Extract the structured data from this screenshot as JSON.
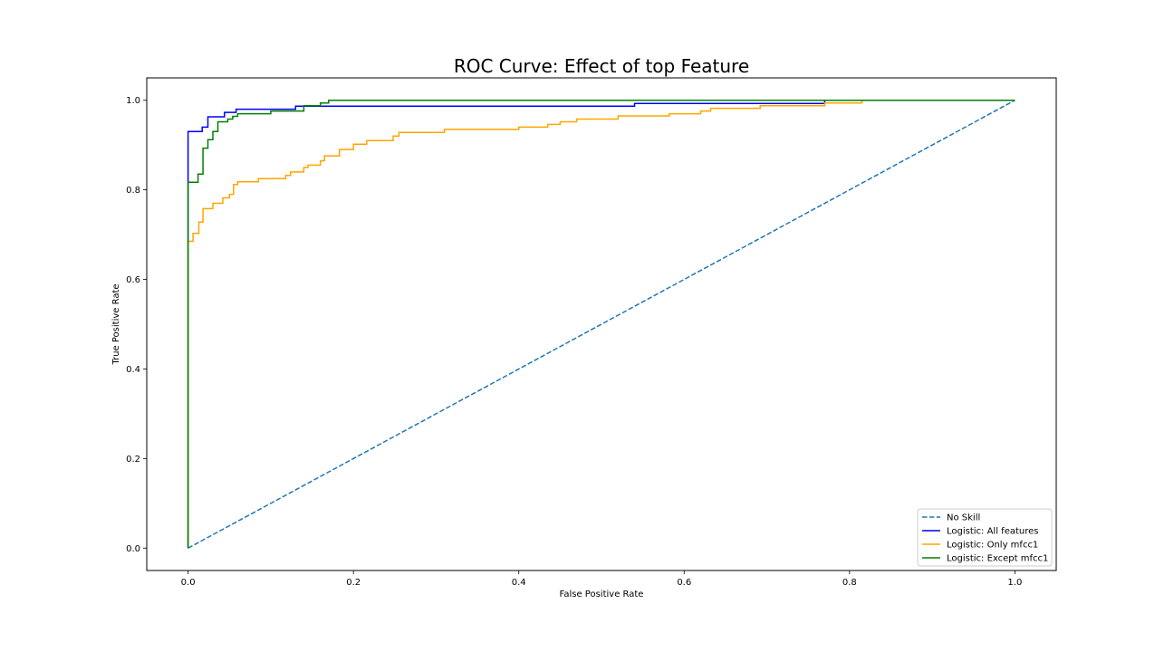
{
  "chart_data": {
    "type": "line",
    "title": "ROC Curve: Effect of top Feature",
    "xlabel": "False Positive Rate",
    "ylabel": "True Positive Rate",
    "xlim": [
      -0.05,
      1.05
    ],
    "ylim": [
      -0.05,
      1.05
    ],
    "xticks": [
      "0.0",
      "0.2",
      "0.4",
      "0.6",
      "0.8",
      "1.0"
    ],
    "yticks": [
      "0.0",
      "0.2",
      "0.4",
      "0.6",
      "0.8",
      "1.0"
    ],
    "grid": false,
    "legend_position": "lower-right",
    "series": [
      {
        "name": "No Skill",
        "color": "#1f77b4",
        "dashed": true,
        "points": [
          [
            0,
            0
          ],
          [
            1,
            1
          ]
        ]
      },
      {
        "name": "Logistic: All features",
        "color": "#0000ff",
        "dashed": false,
        "points": [
          [
            0,
            0
          ],
          [
            0,
            0.93
          ],
          [
            0.017,
            0.93
          ],
          [
            0.017,
            0.94
          ],
          [
            0.024,
            0.94
          ],
          [
            0.024,
            0.963
          ],
          [
            0.044,
            0.963
          ],
          [
            0.044,
            0.973
          ],
          [
            0.058,
            0.973
          ],
          [
            0.058,
            0.98
          ],
          [
            0.13,
            0.98
          ],
          [
            0.13,
            0.987
          ],
          [
            0.54,
            0.987
          ],
          [
            0.54,
            0.993
          ],
          [
            0.77,
            0.993
          ],
          [
            0.77,
            1.0
          ],
          [
            1,
            1
          ]
        ]
      },
      {
        "name": "Logistic: Only mfcc1",
        "color": "#ffa500",
        "dashed": false,
        "points": [
          [
            0,
            0
          ],
          [
            0,
            0.685
          ],
          [
            0.006,
            0.685
          ],
          [
            0.006,
            0.703
          ],
          [
            0.013,
            0.703
          ],
          [
            0.013,
            0.728
          ],
          [
            0.018,
            0.728
          ],
          [
            0.018,
            0.758
          ],
          [
            0.03,
            0.758
          ],
          [
            0.03,
            0.77
          ],
          [
            0.042,
            0.77
          ],
          [
            0.042,
            0.782
          ],
          [
            0.05,
            0.782
          ],
          [
            0.05,
            0.79
          ],
          [
            0.055,
            0.79
          ],
          [
            0.055,
            0.812
          ],
          [
            0.06,
            0.812
          ],
          [
            0.06,
            0.818
          ],
          [
            0.085,
            0.818
          ],
          [
            0.085,
            0.825
          ],
          [
            0.118,
            0.825
          ],
          [
            0.118,
            0.832
          ],
          [
            0.124,
            0.832
          ],
          [
            0.124,
            0.84
          ],
          [
            0.14,
            0.84
          ],
          [
            0.14,
            0.85
          ],
          [
            0.145,
            0.85
          ],
          [
            0.145,
            0.855
          ],
          [
            0.16,
            0.855
          ],
          [
            0.16,
            0.865
          ],
          [
            0.165,
            0.865
          ],
          [
            0.165,
            0.876
          ],
          [
            0.183,
            0.876
          ],
          [
            0.183,
            0.89
          ],
          [
            0.2,
            0.89
          ],
          [
            0.2,
            0.902
          ],
          [
            0.216,
            0.902
          ],
          [
            0.216,
            0.91
          ],
          [
            0.248,
            0.91
          ],
          [
            0.248,
            0.92
          ],
          [
            0.255,
            0.92
          ],
          [
            0.255,
            0.928
          ],
          [
            0.31,
            0.928
          ],
          [
            0.31,
            0.935
          ],
          [
            0.4,
            0.935
          ],
          [
            0.4,
            0.94
          ],
          [
            0.435,
            0.94
          ],
          [
            0.435,
            0.946
          ],
          [
            0.45,
            0.946
          ],
          [
            0.45,
            0.952
          ],
          [
            0.47,
            0.952
          ],
          [
            0.47,
            0.958
          ],
          [
            0.52,
            0.958
          ],
          [
            0.52,
            0.965
          ],
          [
            0.582,
            0.965
          ],
          [
            0.582,
            0.97
          ],
          [
            0.62,
            0.97
          ],
          [
            0.62,
            0.976
          ],
          [
            0.632,
            0.976
          ],
          [
            0.632,
            0.982
          ],
          [
            0.692,
            0.982
          ],
          [
            0.692,
            0.988
          ],
          [
            0.77,
            0.988
          ],
          [
            0.77,
            0.994
          ],
          [
            0.815,
            0.994
          ],
          [
            0.815,
            1.0
          ],
          [
            1,
            1
          ]
        ]
      },
      {
        "name": "Logistic: Except mfcc1",
        "color": "#008000",
        "dashed": false,
        "points": [
          [
            0,
            0
          ],
          [
            0,
            0.817
          ],
          [
            0.012,
            0.817
          ],
          [
            0.012,
            0.835
          ],
          [
            0.018,
            0.835
          ],
          [
            0.018,
            0.893
          ],
          [
            0.024,
            0.893
          ],
          [
            0.024,
            0.912
          ],
          [
            0.03,
            0.912
          ],
          [
            0.03,
            0.93
          ],
          [
            0.036,
            0.93
          ],
          [
            0.036,
            0.952
          ],
          [
            0.048,
            0.952
          ],
          [
            0.048,
            0.958
          ],
          [
            0.054,
            0.958
          ],
          [
            0.054,
            0.964
          ],
          [
            0.06,
            0.964
          ],
          [
            0.06,
            0.97
          ],
          [
            0.1,
            0.97
          ],
          [
            0.1,
            0.976
          ],
          [
            0.14,
            0.976
          ],
          [
            0.14,
            0.988
          ],
          [
            0.16,
            0.988
          ],
          [
            0.16,
            0.994
          ],
          [
            0.17,
            0.994
          ],
          [
            0.17,
            1.0
          ],
          [
            1,
            1
          ]
        ]
      }
    ]
  }
}
